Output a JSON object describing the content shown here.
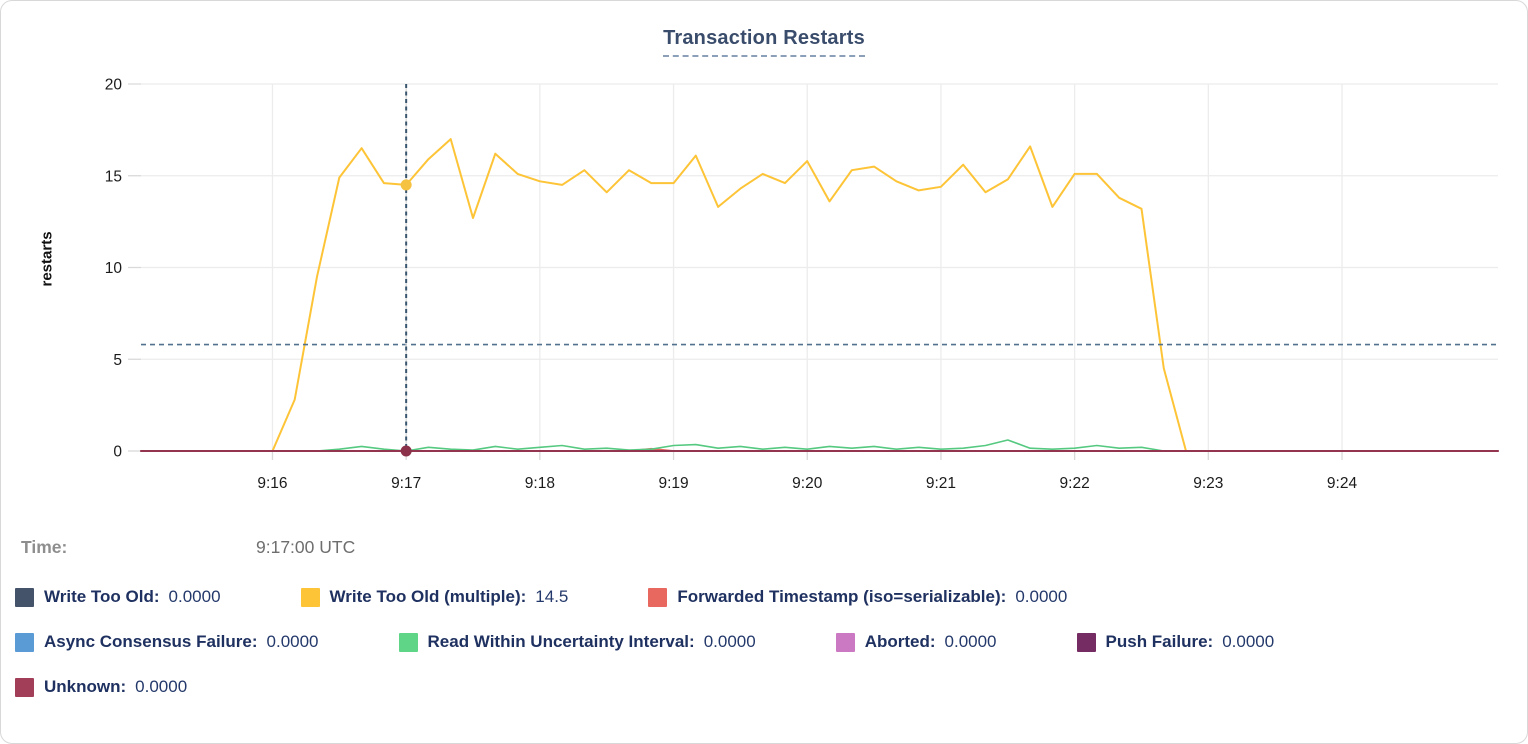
{
  "page": {
    "title": "Transaction Restarts"
  },
  "tooltip": {
    "time_label": "Time:",
    "time_value": "9:17:00 UTC"
  },
  "legend": {
    "rows": [
      [
        {
          "label": "Write Too Old",
          "value": "0.0000",
          "color": "#44526a"
        },
        {
          "label": "Write Too Old (multiple)",
          "value": "14.5",
          "color": "#fdc437"
        },
        {
          "label": "Forwarded Timestamp (iso=serializable)",
          "value": "0.0000",
          "color": "#e8675f"
        }
      ],
      [
        {
          "label": "Async Consensus Failure",
          "value": "0.0000",
          "color": "#5a9ad5"
        },
        {
          "label": "Read Within Uncertainty Interval",
          "value": "0.0000",
          "color": "#5ed587"
        },
        {
          "label": "Aborted",
          "value": "0.0000",
          "color": "#ca79c2"
        },
        {
          "label": "Push Failure",
          "value": "0.0000",
          "color": "#752c62"
        }
      ],
      [
        {
          "label": "Unknown",
          "value": "0.0000",
          "color": "#a23e57"
        }
      ]
    ]
  },
  "chart_data": {
    "type": "line",
    "title": "Transaction Restarts",
    "xlabel": "",
    "ylabel": "restarts",
    "ylim": [
      0,
      20
    ],
    "yticks": [
      0,
      5,
      10,
      15,
      20
    ],
    "xticks": [
      "9:16",
      "9:17",
      "9:18",
      "9:19",
      "9:20",
      "9:21",
      "9:22",
      "9:23",
      "9:24"
    ],
    "x_domain": [
      "9:15:01",
      "9:25:10"
    ],
    "grid": true,
    "legend_position": "bottom",
    "reference_line": {
      "value": 5.8,
      "color": "#51718e"
    },
    "crosshair": {
      "time": "9:17:00",
      "color": "#39566e",
      "points": [
        {
          "series": "Write Too Old (multiple)",
          "value": 14.5,
          "color": "#f5c242"
        },
        {
          "series": "Unknown",
          "value": 0,
          "color": "#8a3048"
        }
      ]
    },
    "series": [
      {
        "name": "Write Too Old",
        "color": "#44526a",
        "stroke_width": 1.5,
        "points": [
          [
            "9:15:01",
            0
          ],
          [
            "9:25:10",
            0
          ]
        ]
      },
      {
        "name": "Async Consensus Failure",
        "color": "#5a9ad5",
        "stroke_width": 1.5,
        "points": [
          [
            "9:15:01",
            0
          ],
          [
            "9:25:10",
            0
          ]
        ]
      },
      {
        "name": "Aborted",
        "color": "#ca79c2",
        "stroke_width": 1.5,
        "points": [
          [
            "9:15:01",
            0
          ],
          [
            "9:25:10",
            0
          ]
        ]
      },
      {
        "name": "Push Failure",
        "color": "#752c62",
        "stroke_width": 1.5,
        "points": [
          [
            "9:15:01",
            0
          ],
          [
            "9:25:10",
            0
          ]
        ]
      },
      {
        "name": "Forwarded Timestamp (iso=serializable)",
        "color": "#e8675f",
        "stroke_width": 1.8,
        "points": [
          [
            "9:15:01",
            0
          ],
          [
            "9:18:40",
            0
          ],
          [
            "9:18:50",
            0.12
          ],
          [
            "9:19:00",
            0
          ],
          [
            "9:25:10",
            0
          ]
        ]
      },
      {
        "name": "Read Within Uncertainty Interval",
        "color": "#55c980",
        "stroke_width": 1.6,
        "points": [
          [
            "9:16:20",
            0
          ],
          [
            "9:16:30",
            0.1
          ],
          [
            "9:16:40",
            0.25
          ],
          [
            "9:16:50",
            0.1
          ],
          [
            "9:17:00",
            0
          ],
          [
            "9:17:10",
            0.2
          ],
          [
            "9:17:20",
            0.1
          ],
          [
            "9:17:30",
            0.05
          ],
          [
            "9:17:40",
            0.25
          ],
          [
            "9:17:50",
            0.1
          ],
          [
            "9:18:00",
            0.2
          ],
          [
            "9:18:10",
            0.3
          ],
          [
            "9:18:20",
            0.1
          ],
          [
            "9:18:30",
            0.15
          ],
          [
            "9:18:40",
            0.05
          ],
          [
            "9:18:50",
            0.1
          ],
          [
            "9:19:00",
            0.3
          ],
          [
            "9:19:10",
            0.35
          ],
          [
            "9:19:20",
            0.15
          ],
          [
            "9:19:30",
            0.25
          ],
          [
            "9:19:40",
            0.1
          ],
          [
            "9:19:50",
            0.2
          ],
          [
            "9:20:00",
            0.1
          ],
          [
            "9:20:10",
            0.25
          ],
          [
            "9:20:20",
            0.15
          ],
          [
            "9:20:30",
            0.25
          ],
          [
            "9:20:40",
            0.1
          ],
          [
            "9:20:50",
            0.2
          ],
          [
            "9:21:00",
            0.1
          ],
          [
            "9:21:10",
            0.15
          ],
          [
            "9:21:20",
            0.3
          ],
          [
            "9:21:30",
            0.6
          ],
          [
            "9:21:40",
            0.15
          ],
          [
            "9:21:50",
            0.1
          ],
          [
            "9:22:00",
            0.15
          ],
          [
            "9:22:10",
            0.3
          ],
          [
            "9:22:20",
            0.15
          ],
          [
            "9:22:30",
            0.2
          ],
          [
            "9:22:40",
            0
          ]
        ]
      },
      {
        "name": "Write Too Old (multiple)",
        "color": "#fdc437",
        "stroke_width": 2,
        "points": [
          [
            "9:16:00",
            0
          ],
          [
            "9:16:10",
            2.8
          ],
          [
            "9:16:20",
            9.5
          ],
          [
            "9:16:30",
            14.9
          ],
          [
            "9:16:40",
            16.5
          ],
          [
            "9:16:50",
            14.6
          ],
          [
            "9:17:00",
            14.5
          ],
          [
            "9:17:10",
            15.9
          ],
          [
            "9:17:20",
            17.0
          ],
          [
            "9:17:30",
            12.7
          ],
          [
            "9:17:40",
            16.2
          ],
          [
            "9:17:50",
            15.1
          ],
          [
            "9:18:00",
            14.7
          ],
          [
            "9:18:10",
            14.5
          ],
          [
            "9:18:20",
            15.3
          ],
          [
            "9:18:30",
            14.1
          ],
          [
            "9:18:40",
            15.3
          ],
          [
            "9:18:50",
            14.6
          ],
          [
            "9:19:00",
            14.6
          ],
          [
            "9:19:10",
            16.1
          ],
          [
            "9:19:20",
            13.3
          ],
          [
            "9:19:30",
            14.3
          ],
          [
            "9:19:40",
            15.1
          ],
          [
            "9:19:50",
            14.6
          ],
          [
            "9:20:00",
            15.8
          ],
          [
            "9:20:10",
            13.6
          ],
          [
            "9:20:20",
            15.3
          ],
          [
            "9:20:30",
            15.5
          ],
          [
            "9:20:40",
            14.7
          ],
          [
            "9:20:50",
            14.2
          ],
          [
            "9:21:00",
            14.4
          ],
          [
            "9:21:10",
            15.6
          ],
          [
            "9:21:20",
            14.1
          ],
          [
            "9:21:30",
            14.8
          ],
          [
            "9:21:40",
            16.6
          ],
          [
            "9:21:50",
            13.3
          ],
          [
            "9:22:00",
            15.1
          ],
          [
            "9:22:10",
            15.1
          ],
          [
            "9:22:20",
            13.8
          ],
          [
            "9:22:30",
            13.2
          ],
          [
            "9:22:40",
            4.5
          ],
          [
            "9:22:50",
            0
          ]
        ]
      },
      {
        "name": "Unknown",
        "color": "#93354f",
        "stroke_width": 2,
        "points": [
          [
            "9:15:01",
            0
          ],
          [
            "9:25:10",
            0
          ]
        ]
      }
    ]
  }
}
